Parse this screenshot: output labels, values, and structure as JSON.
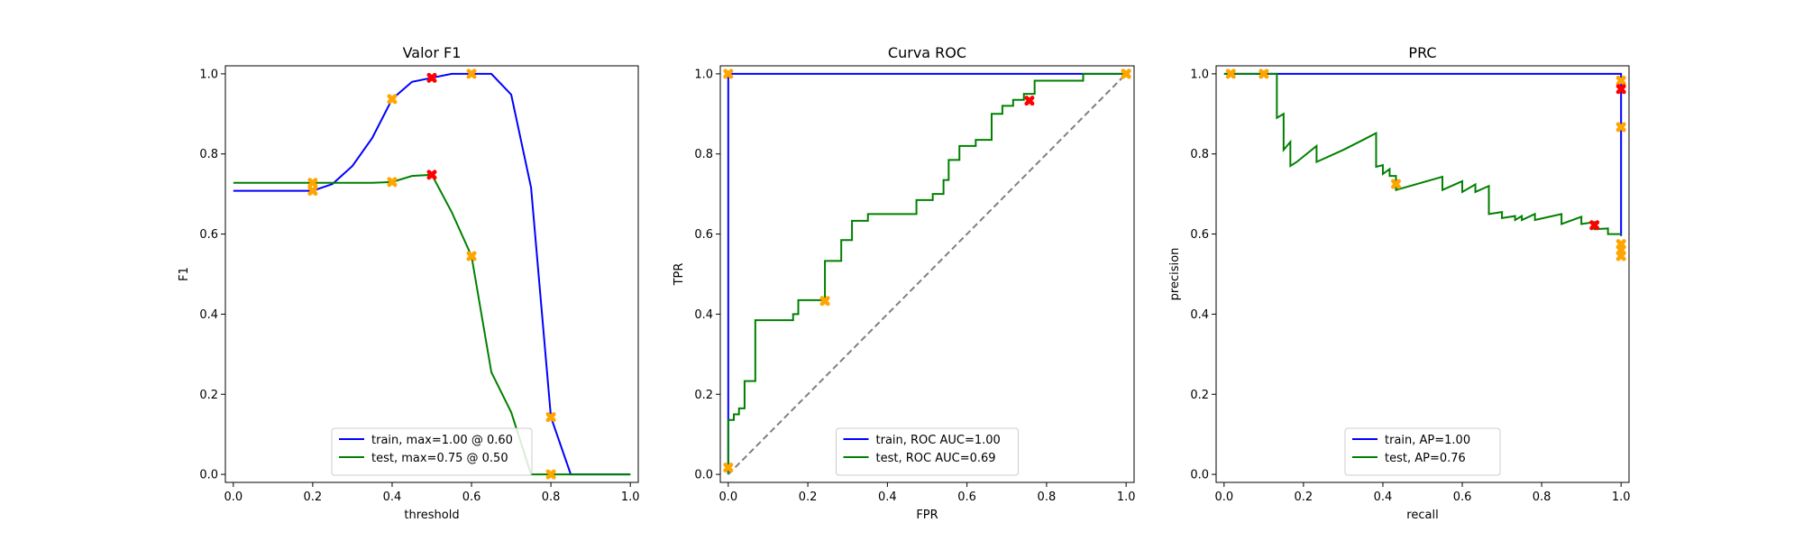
{
  "chart_data": [
    {
      "type": "line",
      "title": "Valor F1",
      "xlabel": "threshold",
      "ylabel": "F1",
      "xlim": [
        -0.02,
        1.02
      ],
      "ylim": [
        -0.02,
        1.02
      ],
      "xticks": [
        "0.0",
        "0.2",
        "0.4",
        "0.6",
        "0.8",
        "1.0"
      ],
      "yticks": [
        "0.0",
        "0.2",
        "0.4",
        "0.6",
        "0.8",
        "1.0"
      ],
      "legend_position": "lower center",
      "series": [
        {
          "name": "train, max=1.00 @ 0.60",
          "color": "#0000ff",
          "x": [
            0.0,
            0.05,
            0.1,
            0.15,
            0.2,
            0.25,
            0.3,
            0.35,
            0.4,
            0.45,
            0.5,
            0.55,
            0.6,
            0.65,
            0.7,
            0.75,
            0.8,
            0.85,
            0.9,
            0.95,
            1.0
          ],
          "y": [
            0.708,
            0.708,
            0.708,
            0.708,
            0.708,
            0.725,
            0.77,
            0.84,
            0.937,
            0.98,
            0.99,
            1.0,
            1.0,
            1.0,
            0.948,
            0.716,
            0.143,
            0.0,
            0.0,
            0.0,
            0.0
          ]
        },
        {
          "name": "test, max=0.75 @ 0.50",
          "color": "#008000",
          "x": [
            0.0,
            0.05,
            0.1,
            0.15,
            0.2,
            0.25,
            0.3,
            0.35,
            0.4,
            0.45,
            0.5,
            0.55,
            0.6,
            0.65,
            0.7,
            0.75,
            0.8,
            0.85,
            0.9,
            0.95,
            1.0
          ],
          "y": [
            0.728,
            0.728,
            0.728,
            0.728,
            0.728,
            0.728,
            0.728,
            0.728,
            0.73,
            0.745,
            0.748,
            0.655,
            0.545,
            0.255,
            0.155,
            0.0,
            0.0,
            0.0,
            0.0,
            0.0,
            0.0
          ]
        }
      ],
      "markers": [
        {
          "color": "#ffa500",
          "points": [
            [
              0.2,
              0.708
            ],
            [
              0.4,
              0.937
            ],
            [
              0.6,
              1.0
            ],
            [
              0.8,
              0.143
            ],
            [
              0.2,
              0.728
            ],
            [
              0.4,
              0.73
            ],
            [
              0.6,
              0.545
            ],
            [
              0.8,
              0.0
            ]
          ]
        },
        {
          "color": "#ff0000",
          "points": [
            [
              0.5,
              0.99
            ],
            [
              0.5,
              0.748
            ]
          ]
        }
      ]
    },
    {
      "type": "line",
      "title": "Curva ROC",
      "xlabel": "FPR",
      "ylabel": "TPR",
      "xlim": [
        -0.02,
        1.02
      ],
      "ylim": [
        -0.02,
        1.02
      ],
      "xticks": [
        "0.0",
        "0.2",
        "0.4",
        "0.6",
        "0.8",
        "1.0"
      ],
      "yticks": [
        "0.0",
        "0.2",
        "0.4",
        "0.6",
        "0.8",
        "1.0"
      ],
      "legend_position": "lower center",
      "series": [
        {
          "name": "train, ROC AUC=1.00",
          "color": "#0000ff",
          "x": [
            0.0,
            0.0,
            1.0
          ],
          "y": [
            0.0,
            1.0,
            1.0
          ]
        },
        {
          "name": "test, ROC AUC=0.69",
          "color": "#008000",
          "x": [
            0.0,
            0.0,
            0.014,
            0.014,
            0.027,
            0.027,
            0.041,
            0.041,
            0.068,
            0.068,
            0.095,
            0.095,
            0.163,
            0.163,
            0.176,
            0.176,
            0.243,
            0.243,
            0.284,
            0.284,
            0.311,
            0.311,
            0.351,
            0.351,
            0.392,
            0.392,
            0.473,
            0.473,
            0.514,
            0.514,
            0.541,
            0.541,
            0.554,
            0.554,
            0.581,
            0.581,
            0.622,
            0.622,
            0.662,
            0.662,
            0.689,
            0.689,
            0.716,
            0.716,
            0.743,
            0.743,
            0.77,
            0.77,
            0.784,
            0.784,
            0.892,
            0.892,
            1.0
          ],
          "y": [
            0.0,
            0.136,
            0.136,
            0.15,
            0.15,
            0.165,
            0.165,
            0.233,
            0.233,
            0.385,
            0.385,
            0.385,
            0.385,
            0.4,
            0.4,
            0.435,
            0.435,
            0.533,
            0.533,
            0.585,
            0.585,
            0.633,
            0.633,
            0.65,
            0.65,
            0.65,
            0.65,
            0.685,
            0.685,
            0.7,
            0.7,
            0.735,
            0.735,
            0.785,
            0.785,
            0.82,
            0.82,
            0.835,
            0.835,
            0.9,
            0.9,
            0.92,
            0.92,
            0.935,
            0.935,
            0.95,
            0.95,
            0.983,
            0.983,
            0.983,
            0.983,
            1.0,
            1.0
          ]
        },
        {
          "name": "",
          "color": "#808080",
          "dashed": true,
          "x": [
            0.0,
            1.0
          ],
          "y": [
            0.0,
            1.0
          ]
        }
      ],
      "markers": [
        {
          "color": "#ffa500",
          "points": [
            [
              0.0,
              1.0
            ],
            [
              1.0,
              1.0
            ],
            [
              0.0,
              0.017
            ],
            [
              0.243,
              0.433
            ],
            [
              1.0,
              1.0
            ]
          ]
        },
        {
          "color": "#ff0000",
          "points": [
            [
              0.757,
              0.933
            ]
          ]
        }
      ]
    },
    {
      "type": "line",
      "title": "PRC",
      "xlabel": "recall",
      "ylabel": "precision",
      "xlim": [
        -0.02,
        1.02
      ],
      "ylim": [
        -0.02,
        1.02
      ],
      "xticks": [
        "0.0",
        "0.2",
        "0.4",
        "0.6",
        "0.8",
        "1.0"
      ],
      "yticks": [
        "0.0",
        "0.2",
        "0.4",
        "0.6",
        "0.8",
        "1.0"
      ],
      "legend_position": "lower center",
      "series": [
        {
          "name": "train, AP=1.00",
          "color": "#0000ff",
          "x": [
            0.0,
            1.0,
            1.0
          ],
          "y": [
            1.0,
            1.0,
            0.595
          ]
        },
        {
          "name": "test, AP=0.76",
          "color": "#008000",
          "x": [
            0.0,
            0.133,
            0.133,
            0.15,
            0.15,
            0.167,
            0.167,
            0.183,
            0.183,
            0.233,
            0.233,
            0.3,
            0.35,
            0.383,
            0.383,
            0.4,
            0.4,
            0.417,
            0.417,
            0.433,
            0.433,
            0.55,
            0.55,
            0.6,
            0.6,
            0.633,
            0.633,
            0.667,
            0.667,
            0.7,
            0.7,
            0.733,
            0.733,
            0.75,
            0.75,
            0.783,
            0.783,
            0.85,
            0.85,
            0.9,
            0.9,
            0.933,
            0.933,
            0.967,
            0.967,
            1.0
          ],
          "y": [
            1.0,
            1.0,
            0.89,
            0.9,
            0.81,
            0.83,
            0.77,
            0.78,
            0.78,
            0.82,
            0.78,
            0.81,
            0.835,
            0.852,
            0.768,
            0.772,
            0.75,
            0.762,
            0.745,
            0.745,
            0.71,
            0.743,
            0.71,
            0.732,
            0.705,
            0.724,
            0.705,
            0.72,
            0.65,
            0.655,
            0.64,
            0.645,
            0.635,
            0.645,
            0.635,
            0.65,
            0.635,
            0.65,
            0.625,
            0.643,
            0.625,
            0.63,
            0.612,
            0.614,
            0.6,
            0.6
          ]
        }
      ],
      "markers": [
        {
          "color": "#ffa500",
          "points": [
            [
              0.017,
              1.0
            ],
            [
              0.1,
              1.0
            ],
            [
              1.0,
              0.983
            ],
            [
              1.0,
              0.867
            ],
            [
              1.0,
              0.575
            ],
            [
              1.0,
              0.545
            ],
            [
              0.433,
              0.725
            ],
            [
              1.0,
              0.56
            ]
          ]
        },
        {
          "color": "#ff0000",
          "points": [
            [
              1.0,
              0.962
            ],
            [
              0.933,
              0.622
            ]
          ]
        }
      ]
    }
  ]
}
